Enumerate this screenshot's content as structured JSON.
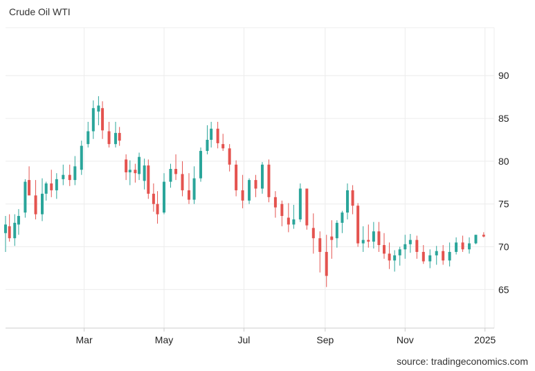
{
  "chart_title": "Crude Oil WTI",
  "source_text": "source: tradingeconomics.com",
  "colors": {
    "up": "#2aa59a",
    "down": "#e4534f",
    "grid": "#ececec"
  },
  "chart_data": {
    "type": "candlestick",
    "title": "Crude Oil WTI",
    "x_ticks": [
      "Mar",
      "May",
      "Jul",
      "Sep",
      "Nov",
      "2025"
    ],
    "x_tick_dates": [
      "2024-03-01",
      "2024-05-01",
      "2024-07-01",
      "2024-09-01",
      "2024-11-01",
      "2025-01-01"
    ],
    "y_ticks": [
      65,
      70,
      75,
      80,
      85,
      90
    ],
    "ylim": [
      60.5,
      95.6
    ],
    "xlim": [
      "2024-01-01",
      "2025-01-08"
    ],
    "grid": true,
    "y_axis_side": "right",
    "series": [
      {
        "name": "",
        "dates": [
          "2024-01-01",
          "2024-01-04",
          "2024-01-08",
          "2024-01-11",
          "2024-01-16",
          "2024-01-19",
          "2024-01-24",
          "2024-01-29",
          "2024-02-01",
          "2024-02-05",
          "2024-02-09",
          "2024-02-14",
          "2024-02-19",
          "2024-02-23",
          "2024-02-28",
          "2024-03-04",
          "2024-03-08",
          "2024-03-12",
          "2024-03-15",
          "2024-03-20",
          "2024-03-25",
          "2024-03-28",
          "2024-04-02",
          "2024-04-05",
          "2024-04-09",
          "2024-04-12",
          "2024-04-16",
          "2024-04-19",
          "2024-04-23",
          "2024-04-26",
          "2024-05-01",
          "2024-05-06",
          "2024-05-10",
          "2024-05-15",
          "2024-05-20",
          "2024-05-24",
          "2024-05-29",
          "2024-06-03",
          "2024-06-06",
          "2024-06-11",
          "2024-06-15",
          "2024-06-20",
          "2024-06-25",
          "2024-06-30",
          "2024-07-05",
          "2024-07-10",
          "2024-07-15",
          "2024-07-20",
          "2024-07-25",
          "2024-07-30",
          "2024-08-04",
          "2024-08-08",
          "2024-08-13",
          "2024-08-18",
          "2024-08-23",
          "2024-08-28",
          "2024-09-02",
          "2024-09-06",
          "2024-09-10",
          "2024-09-14",
          "2024-09-18",
          "2024-09-22",
          "2024-09-26",
          "2024-09-30",
          "2024-10-04",
          "2024-10-08",
          "2024-10-12",
          "2024-10-16",
          "2024-10-20",
          "2024-10-24",
          "2024-10-28",
          "2024-11-01",
          "2024-11-05",
          "2024-11-10",
          "2024-11-15",
          "2024-11-20",
          "2024-11-25",
          "2024-11-30",
          "2024-12-05",
          "2024-12-10",
          "2024-12-15",
          "2024-12-20",
          "2024-12-25",
          "2024-12-31"
        ],
        "open": [
          71.6,
          72.4,
          71.0,
          72.6,
          74.0,
          77.8,
          76.0,
          73.8,
          76.2,
          77.4,
          76.6,
          77.9,
          78.4,
          77.8,
          79.0,
          82.0,
          83.5,
          85.8,
          86.2,
          83.5,
          82.0,
          83.3,
          80.2,
          78.7,
          79.0,
          78.5,
          77.7,
          79.5,
          76.2,
          75.0,
          74.0,
          77.6,
          79.1,
          78.5,
          76.6,
          75.5,
          78.0,
          81.2,
          82.5,
          83.8,
          82.0,
          81.5,
          79.6,
          76.6,
          75.4,
          77.8,
          76.8,
          79.6,
          75.8,
          75.0,
          73.4,
          72.6,
          73.2,
          76.8,
          72.2,
          71.0,
          69.4,
          71.2,
          71.0,
          72.8,
          74.0,
          76.6,
          74.8,
          70.4,
          70.8,
          70.6,
          71.8,
          70.2,
          69.2,
          68.4,
          69.0,
          69.7,
          70.3,
          70.8,
          69.4,
          68.3,
          69.0,
          69.5,
          68.4,
          69.4,
          70.5,
          69.7,
          70.4,
          71.4
        ],
        "high": [
          73.6,
          73.8,
          73.8,
          74.4,
          77.9,
          79.4,
          77.8,
          78.0,
          77.6,
          79.0,
          78.6,
          79.6,
          79.6,
          80.6,
          82.4,
          84.6,
          87.1,
          87.6,
          87.0,
          84.6,
          84.6,
          84.0,
          80.8,
          80.1,
          79.7,
          81.0,
          80.3,
          80.2,
          77.4,
          76.5,
          78.6,
          79.7,
          80.8,
          80.0,
          78.6,
          79.4,
          81.6,
          84.2,
          84.6,
          84.6,
          83.2,
          82.0,
          80.1,
          78.4,
          78.0,
          78.4,
          79.9,
          80.2,
          76.5,
          75.4,
          75.1,
          74.9,
          77.4,
          76.8,
          73.9,
          71.8,
          71.4,
          73.1,
          73.1,
          74.2,
          77.4,
          77.2,
          75.1,
          72.4,
          72.6,
          72.9,
          72.9,
          71.6,
          70.5,
          69.6,
          70.0,
          71.4,
          71.5,
          71.3,
          70.2,
          69.7,
          70.1,
          70.2,
          70.5,
          71.1,
          71.3,
          71.1,
          71.4,
          71.7
        ],
        "low": [
          69.4,
          70.6,
          70.1,
          71.4,
          73.4,
          76.2,
          73.2,
          73.0,
          75.4,
          75.8,
          75.6,
          77.2,
          77.1,
          77.2,
          78.4,
          81.6,
          82.6,
          84.2,
          82.6,
          81.6,
          81.6,
          81.8,
          77.8,
          77.2,
          77.5,
          77.8,
          76.7,
          75.6,
          74.1,
          72.7,
          73.8,
          76.9,
          77.8,
          75.9,
          75.0,
          75.0,
          77.6,
          80.8,
          81.6,
          81.5,
          81.2,
          78.8,
          75.9,
          74.5,
          75.0,
          75.8,
          76.2,
          75.2,
          73.4,
          72.4,
          71.7,
          72.1,
          72.9,
          72.0,
          69.2,
          67.0,
          65.3,
          68.6,
          69.9,
          71.6,
          73.2,
          73.8,
          70.0,
          69.4,
          69.9,
          69.8,
          69.4,
          68.6,
          67.4,
          67.1,
          67.8,
          68.6,
          69.3,
          68.6,
          68.0,
          67.5,
          67.9,
          67.9,
          67.7,
          69.1,
          69.4,
          69.2,
          70.3,
          71.1
        ],
        "close": [
          72.6,
          71.0,
          72.8,
          73.6,
          77.6,
          76.0,
          73.8,
          76.2,
          77.4,
          76.6,
          77.9,
          78.4,
          77.8,
          79.4,
          81.8,
          83.5,
          86.2,
          86.5,
          83.6,
          82.0,
          83.3,
          82.4,
          78.7,
          79.0,
          78.6,
          80.5,
          79.5,
          76.2,
          75.0,
          73.8,
          77.6,
          79.1,
          78.5,
          76.6,
          75.5,
          78.0,
          81.2,
          82.5,
          83.8,
          82.1,
          81.5,
          79.6,
          76.6,
          75.4,
          77.8,
          76.8,
          79.6,
          75.8,
          74.6,
          73.6,
          72.6,
          73.2,
          76.8,
          72.5,
          71.0,
          69.4,
          66.6,
          70.8,
          72.8,
          74.0,
          76.6,
          74.8,
          70.4,
          70.8,
          70.6,
          71.8,
          70.2,
          69.2,
          68.4,
          69.0,
          69.7,
          70.3,
          70.8,
          69.4,
          68.3,
          69.0,
          69.5,
          68.4,
          69.4,
          70.5,
          69.7,
          70.4,
          71.4,
          71.2
        ]
      }
    ]
  }
}
